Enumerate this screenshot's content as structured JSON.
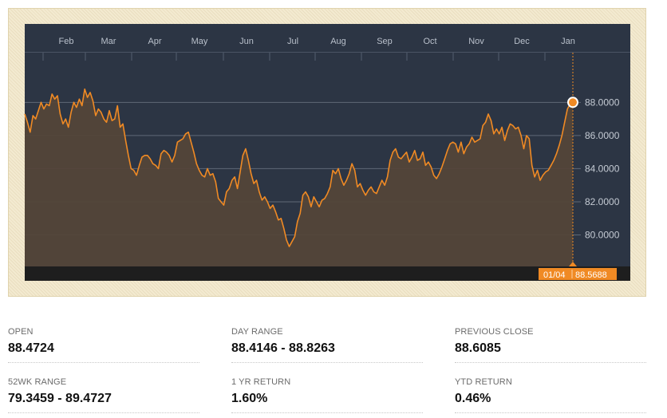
{
  "chart_data": {
    "type": "line",
    "x_tick_labels": [
      "Feb",
      "Mar",
      "Apr",
      "May",
      "Jun",
      "Jul",
      "Aug",
      "Sep",
      "Oct",
      "Nov",
      "Dec",
      "Jan"
    ],
    "y_tick_labels": [
      "88.0000",
      "86.0000",
      "84.0000",
      "82.0000",
      "80.0000"
    ],
    "y_ticks": [
      88,
      86,
      84,
      82,
      80
    ],
    "ylim": [
      78.1,
      91.0
    ],
    "grid": "horizontal",
    "series": [
      {
        "color": "#f08a24",
        "values": [
          87.3,
          86.8,
          86.2,
          87.2,
          87.0,
          87.5,
          88.0,
          87.6,
          87.9,
          87.8,
          88.5,
          88.2,
          88.4,
          87.3,
          86.7,
          87.0,
          86.5,
          87.4,
          88.0,
          87.7,
          88.2,
          87.8,
          88.8,
          88.3,
          88.6,
          88.1,
          87.2,
          87.6,
          87.4,
          87.0,
          86.8,
          87.5,
          86.9,
          87.0,
          87.8,
          86.5,
          86.7,
          85.7,
          84.8,
          84.0,
          83.9,
          83.6,
          84.2,
          84.7,
          84.8,
          84.8,
          84.6,
          84.3,
          84.2,
          84.0,
          84.9,
          85.1,
          85.0,
          84.8,
          84.4,
          84.8,
          85.6,
          85.7,
          85.8,
          86.1,
          86.2,
          85.6,
          85.0,
          84.3,
          83.9,
          83.6,
          83.5,
          84.0,
          83.6,
          83.7,
          83.2,
          82.2,
          82.0,
          81.8,
          82.6,
          82.8,
          83.3,
          83.5,
          82.8,
          83.8,
          84.8,
          85.2,
          84.5,
          83.7,
          83.1,
          83.3,
          82.6,
          82.1,
          82.3,
          82.0,
          81.6,
          81.8,
          81.4,
          80.9,
          81.0,
          80.4,
          79.7,
          79.3,
          79.6,
          79.9,
          80.8,
          81.3,
          82.4,
          82.6,
          82.3,
          81.7,
          82.3,
          82.0,
          81.7,
          82.1,
          82.2,
          82.5,
          82.9,
          83.9,
          83.7,
          84.0,
          83.4,
          83.0,
          83.3,
          83.7,
          84.3,
          83.9,
          82.9,
          83.1,
          82.7,
          82.4,
          82.7,
          82.9,
          82.6,
          82.5,
          82.9,
          83.3,
          83.0,
          83.5,
          84.5,
          85.0,
          85.2,
          84.7,
          84.6,
          84.8,
          85.0,
          84.4,
          84.7,
          85.1,
          84.5,
          84.6,
          85.0,
          84.2,
          84.4,
          84.1,
          83.6,
          83.4,
          83.7,
          84.1,
          84.6,
          85.1,
          85.5,
          85.6,
          85.5,
          85.0,
          85.6,
          84.9,
          85.3,
          85.5,
          85.9,
          85.6,
          85.7,
          85.8,
          86.6,
          86.8,
          87.3,
          86.9,
          86.1,
          86.4,
          86.1,
          86.5,
          85.7,
          86.3,
          86.7,
          86.6,
          86.4,
          86.5,
          86.0,
          85.2,
          86.0,
          85.8,
          84.2,
          83.5,
          83.9,
          83.3,
          83.6,
          83.8,
          83.9,
          84.2,
          84.5,
          84.9,
          85.4,
          86.0,
          86.8,
          87.6,
          87.9,
          88.0
        ]
      }
    ],
    "highlight": {
      "date_label": "01/04",
      "value_label": "88.5688"
    }
  },
  "stats": [
    {
      "label": "OPEN",
      "value": "88.4724"
    },
    {
      "label": "DAY RANGE",
      "value": "88.4146 - 88.8263"
    },
    {
      "label": "PREVIOUS CLOSE",
      "value": "88.6085"
    },
    {
      "label": "52WK RANGE",
      "value": "79.3459 - 89.4727"
    },
    {
      "label": "1 YR RETURN",
      "value": "1.60%"
    },
    {
      "label": "YTD RETURN",
      "value": "0.46%"
    }
  ],
  "colors": {
    "plot_bg": "#2c3544",
    "line": "#f08a24",
    "area": "#534639",
    "bottom_bar": "#1e1e1e",
    "tag_bg": "#f08a24"
  }
}
